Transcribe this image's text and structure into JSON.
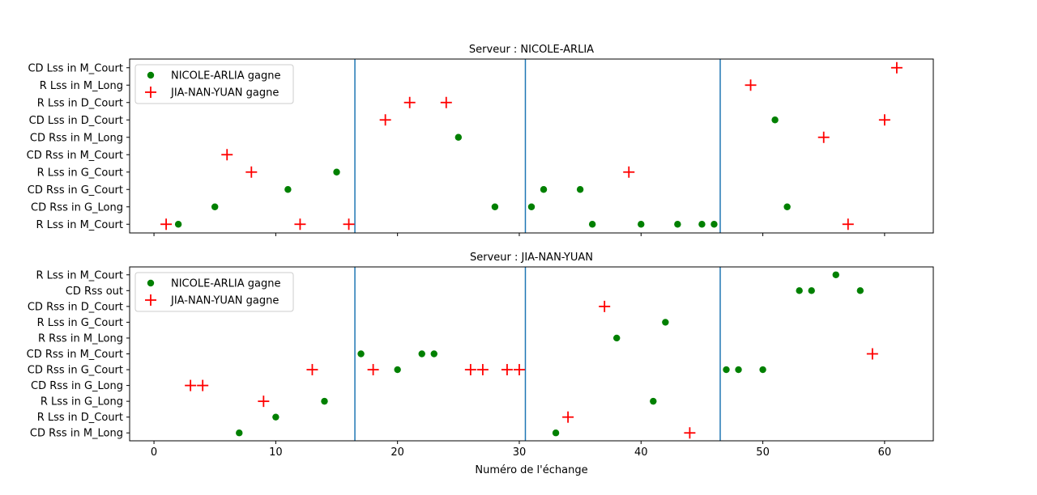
{
  "chart_data": [
    {
      "type": "scatter",
      "title": "Serveur : NICOLE-ARLIA",
      "xlabel": "",
      "ylabel": "",
      "xlim": [
        -2,
        64
      ],
      "xticks": [
        0,
        10,
        20,
        30,
        40,
        50,
        60
      ],
      "show_x_tick_labels": false,
      "vlines": [
        16.5,
        30.5,
        46.5
      ],
      "categories": [
        "R Lss in M_Court",
        "CD Rss in G_Long",
        "CD Rss in G_Court",
        "R Lss in G_Court",
        "CD Rss in M_Court",
        "CD Rss in M_Long",
        "CD Lss in D_Court",
        "R Lss in D_Court",
        "R Lss in M_Long",
        "CD Lss in M_Court"
      ],
      "legend": "upper-left",
      "series": [
        {
          "name": "NICOLE-ARLIA gagne",
          "marker": "circle",
          "color": "#008000",
          "points": [
            {
              "x": 2,
              "y": "R Lss in M_Court"
            },
            {
              "x": 5,
              "y": "CD Rss in G_Long"
            },
            {
              "x": 11,
              "y": "CD Rss in G_Court"
            },
            {
              "x": 15,
              "y": "R Lss in G_Court"
            },
            {
              "x": 25,
              "y": "CD Rss in M_Long"
            },
            {
              "x": 28,
              "y": "CD Rss in G_Long"
            },
            {
              "x": 31,
              "y": "CD Rss in G_Long"
            },
            {
              "x": 32,
              "y": "CD Rss in G_Court"
            },
            {
              "x": 35,
              "y": "CD Rss in G_Court"
            },
            {
              "x": 36,
              "y": "R Lss in M_Court"
            },
            {
              "x": 40,
              "y": "R Lss in M_Court"
            },
            {
              "x": 43,
              "y": "R Lss in M_Court"
            },
            {
              "x": 45,
              "y": "R Lss in M_Court"
            },
            {
              "x": 46,
              "y": "R Lss in M_Court"
            },
            {
              "x": 51,
              "y": "CD Lss in D_Court"
            },
            {
              "x": 52,
              "y": "CD Rss in G_Long"
            }
          ]
        },
        {
          "name": "JIA-NAN-YUAN gagne",
          "marker": "plus",
          "color": "#ff0000",
          "points": [
            {
              "x": 1,
              "y": "R Lss in M_Court"
            },
            {
              "x": 6,
              "y": "CD Rss in M_Court"
            },
            {
              "x": 8,
              "y": "R Lss in G_Court"
            },
            {
              "x": 12,
              "y": "R Lss in M_Court"
            },
            {
              "x": 16,
              "y": "R Lss in M_Court"
            },
            {
              "x": 19,
              "y": "CD Lss in D_Court"
            },
            {
              "x": 21,
              "y": "R Lss in D_Court"
            },
            {
              "x": 24,
              "y": "R Lss in D_Court"
            },
            {
              "x": 39,
              "y": "R Lss in G_Court"
            },
            {
              "x": 49,
              "y": "R Lss in M_Long"
            },
            {
              "x": 55,
              "y": "CD Rss in M_Long"
            },
            {
              "x": 57,
              "y": "R Lss in M_Court"
            },
            {
              "x": 60,
              "y": "CD Lss in D_Court"
            },
            {
              "x": 61,
              "y": "CD Lss in M_Court"
            }
          ]
        }
      ]
    },
    {
      "type": "scatter",
      "title": "Serveur : JIA-NAN-YUAN",
      "xlabel": "Numéro de l'échange",
      "ylabel": "",
      "xlim": [
        -2,
        64
      ],
      "xticks": [
        0,
        10,
        20,
        30,
        40,
        50,
        60
      ],
      "show_x_tick_labels": true,
      "vlines": [
        16.5,
        30.5,
        46.5
      ],
      "categories": [
        "CD Rss in M_Long",
        "R Lss in D_Court",
        "R Lss in G_Long",
        "CD Rss in G_Long",
        "CD Rss in G_Court",
        "CD Rss in M_Court",
        "R Rss in M_Long",
        "R Lss in G_Court",
        "CD Rss in D_Court",
        "CD Rss out",
        "R Lss in M_Court"
      ],
      "legend": "upper-left",
      "series": [
        {
          "name": "NICOLE-ARLIA gagne",
          "marker": "circle",
          "color": "#008000",
          "points": [
            {
              "x": 7,
              "y": "CD Rss in M_Long"
            },
            {
              "x": 10,
              "y": "R Lss in D_Court"
            },
            {
              "x": 14,
              "y": "R Lss in G_Long"
            },
            {
              "x": 17,
              "y": "CD Rss in M_Court"
            },
            {
              "x": 20,
              "y": "CD Rss in G_Court"
            },
            {
              "x": 22,
              "y": "CD Rss in M_Court"
            },
            {
              "x": 23,
              "y": "CD Rss in M_Court"
            },
            {
              "x": 33,
              "y": "CD Rss in M_Long"
            },
            {
              "x": 38,
              "y": "R Rss in M_Long"
            },
            {
              "x": 41,
              "y": "R Lss in G_Long"
            },
            {
              "x": 42,
              "y": "R Lss in G_Court"
            },
            {
              "x": 47,
              "y": "CD Rss in G_Court"
            },
            {
              "x": 48,
              "y": "CD Rss in G_Court"
            },
            {
              "x": 50,
              "y": "CD Rss in G_Court"
            },
            {
              "x": 53,
              "y": "CD Rss out"
            },
            {
              "x": 54,
              "y": "CD Rss out"
            },
            {
              "x": 56,
              "y": "R Lss in M_Court"
            },
            {
              "x": 58,
              "y": "CD Rss out"
            }
          ]
        },
        {
          "name": "JIA-NAN-YUAN gagne",
          "marker": "plus",
          "color": "#ff0000",
          "points": [
            {
              "x": 3,
              "y": "CD Rss in G_Long"
            },
            {
              "x": 4,
              "y": "CD Rss in G_Long"
            },
            {
              "x": 9,
              "y": "R Lss in G_Long"
            },
            {
              "x": 13,
              "y": "CD Rss in G_Court"
            },
            {
              "x": 18,
              "y": "CD Rss in G_Court"
            },
            {
              "x": 26,
              "y": "CD Rss in G_Court"
            },
            {
              "x": 27,
              "y": "CD Rss in G_Court"
            },
            {
              "x": 29,
              "y": "CD Rss in G_Court"
            },
            {
              "x": 30,
              "y": "CD Rss in G_Court"
            },
            {
              "x": 34,
              "y": "R Lss in D_Court"
            },
            {
              "x": 37,
              "y": "CD Rss in D_Court"
            },
            {
              "x": 44,
              "y": "CD Rss in M_Long"
            },
            {
              "x": 59,
              "y": "CD Rss in M_Court"
            }
          ]
        }
      ]
    }
  ]
}
